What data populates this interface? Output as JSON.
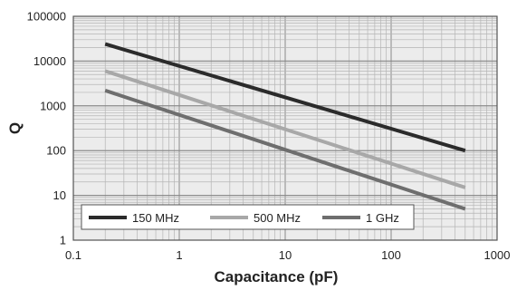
{
  "chart_data": {
    "type": "line",
    "title": "",
    "xlabel": "Capacitance (pF)",
    "ylabel": "Q",
    "x_scale": "log",
    "y_scale": "log",
    "xlim": [
      0.1,
      1000
    ],
    "ylim": [
      1,
      100000
    ],
    "x_ticks": [
      "0.1",
      "1",
      "10",
      "100",
      "1000"
    ],
    "y_ticks": [
      "1",
      "10",
      "100",
      "1000",
      "10000",
      "100000"
    ],
    "grid": true,
    "legend_position": "bottom-left",
    "series": [
      {
        "name": "150 MHz",
        "color": "#2b2b2b",
        "x": [
          0.2,
          500
        ],
        "y": [
          24000,
          100
        ]
      },
      {
        "name": "500 MHz",
        "color": "#a8a8a8",
        "x": [
          0.2,
          500
        ],
        "y": [
          6000,
          15
        ]
      },
      {
        "name": "1 GHz",
        "color": "#6e6e6e",
        "x": [
          0.2,
          500
        ],
        "y": [
          2200,
          5
        ]
      }
    ]
  }
}
